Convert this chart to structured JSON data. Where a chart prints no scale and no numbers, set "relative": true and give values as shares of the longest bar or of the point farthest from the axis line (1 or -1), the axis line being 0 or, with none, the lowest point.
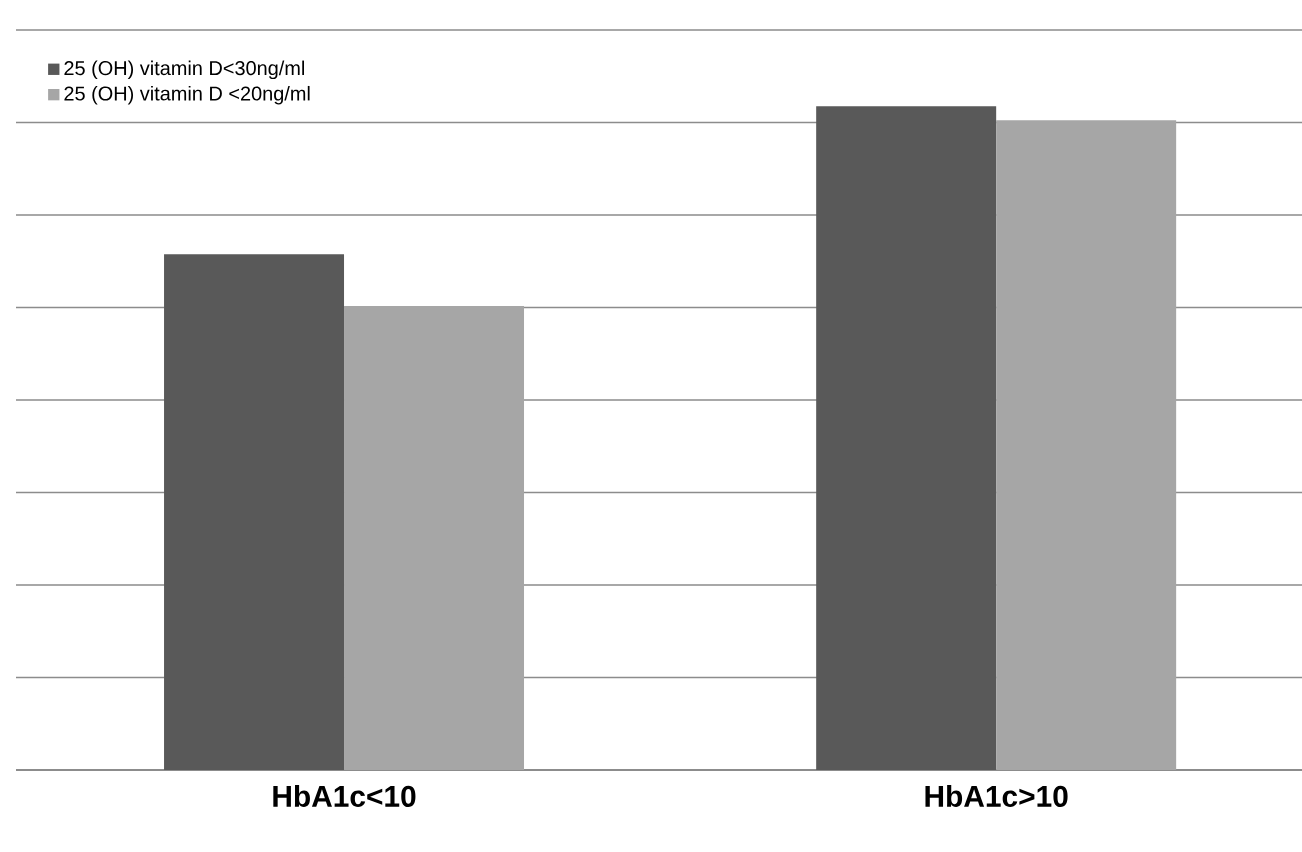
{
  "chart_data": {
    "type": "bar",
    "relative": true,
    "categories": [
      "HbA1c<10",
      "HbA1c>10"
    ],
    "series": [
      {
        "name": "25 (OH) vitamin D<30ng/ml",
        "color": "#595959",
        "values": [
          0.777,
          1
        ]
      },
      {
        "name": "25 (OH) vitamin D <20ng/ml",
        "color": "#a6a6a6",
        "values": [
          0.699,
          0.979
        ]
      }
    ],
    "grid": "y",
    "legend": "top left"
  }
}
